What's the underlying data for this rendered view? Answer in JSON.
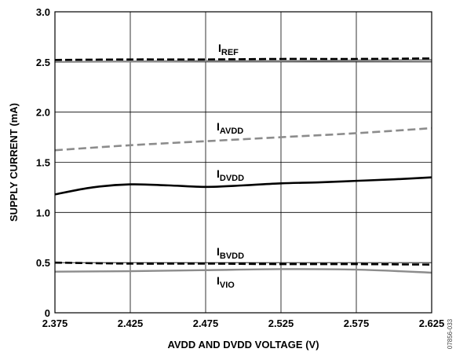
{
  "chart_data": {
    "type": "line",
    "xlabel": "AVDD AND DVDD VOLTAGE (V)",
    "ylabel": "SUPPLY CURRENT (mA)",
    "xlim": [
      2.375,
      2.625
    ],
    "ylim": [
      0,
      3.0
    ],
    "xticks": [
      "2.375",
      "2.425",
      "2.475",
      "2.525",
      "2.575",
      "2.625"
    ],
    "yticks": [
      "0",
      "0.5",
      "1.0",
      "1.5",
      "2.0",
      "2.5",
      "3.0"
    ],
    "grid": true,
    "figure_id": "07856-033",
    "series": [
      {
        "label_main": "I",
        "label_sub": "REF",
        "style": "dashed-black",
        "x": [
          2.375,
          2.425,
          2.475,
          2.525,
          2.575,
          2.625
        ],
        "y": [
          2.52,
          2.525,
          2.525,
          2.53,
          2.53,
          2.535
        ]
      },
      {
        "style": "solid-gray",
        "x": [
          2.375,
          2.425,
          2.475,
          2.525,
          2.575,
          2.625
        ],
        "y": [
          2.5,
          2.505,
          2.51,
          2.51,
          2.515,
          2.52
        ]
      },
      {
        "label_main": "I",
        "label_sub": "AVDD",
        "style": "dashed-gray",
        "x": [
          2.375,
          2.425,
          2.475,
          2.525,
          2.575,
          2.625
        ],
        "y": [
          1.62,
          1.67,
          1.71,
          1.75,
          1.79,
          1.84
        ]
      },
      {
        "label_main": "I",
        "label_sub": "DVDD",
        "style": "solid-black",
        "x": [
          2.375,
          2.4,
          2.425,
          2.45,
          2.475,
          2.5,
          2.525,
          2.55,
          2.575,
          2.6,
          2.625
        ],
        "y": [
          1.18,
          1.25,
          1.28,
          1.27,
          1.255,
          1.27,
          1.29,
          1.3,
          1.315,
          1.33,
          1.35
        ]
      },
      {
        "label_main": "I",
        "label_sub": "BVDD",
        "style": "dashed-black",
        "x": [
          2.375,
          2.425,
          2.475,
          2.525,
          2.575,
          2.625
        ],
        "y": [
          0.5,
          0.49,
          0.49,
          0.485,
          0.485,
          0.48
        ]
      },
      {
        "label_main": "I",
        "label_sub": "VIO",
        "style": "solid-gray",
        "x": [
          2.375,
          2.425,
          2.475,
          2.525,
          2.575,
          2.625
        ],
        "y": [
          0.41,
          0.415,
          0.425,
          0.435,
          0.43,
          0.4
        ]
      }
    ]
  }
}
